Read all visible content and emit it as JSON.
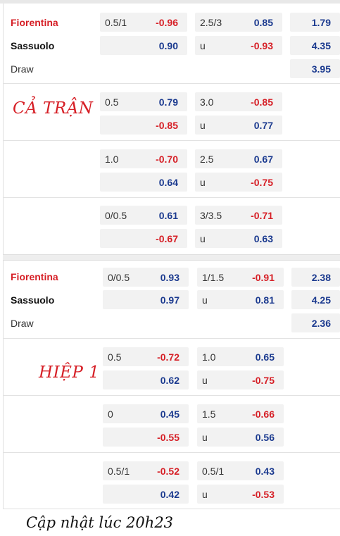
{
  "full_time": {
    "title": "CẢ TRẬN",
    "teams": {
      "home": "Fiorentina",
      "away": "Sassuolo",
      "draw": "Draw"
    },
    "main": {
      "ah_line": "0.5/1",
      "ah_home": "-0.96",
      "ah_away": "0.90",
      "ou_line": "2.5/3",
      "ou_over": "0.85",
      "ou_under_label": "u",
      "ou_under": "-0.93",
      "x12_home": "1.79",
      "x12_away": "4.35",
      "x12_draw": "3.95"
    },
    "alt": [
      {
        "ah_line": "0.5",
        "ah_home": "0.79",
        "ah_away": "-0.85",
        "ou_line": "3.0",
        "ou_over": "-0.85",
        "ou_under_label": "u",
        "ou_under": "0.77"
      },
      {
        "ah_line": "1.0",
        "ah_home": "-0.70",
        "ah_away": "0.64",
        "ou_line": "2.5",
        "ou_over": "0.67",
        "ou_under_label": "u",
        "ou_under": "-0.75"
      },
      {
        "ah_line": "0/0.5",
        "ah_home": "0.61",
        "ah_away": "-0.67",
        "ou_line": "3/3.5",
        "ou_over": "-0.71",
        "ou_under_label": "u",
        "ou_under": "0.63"
      }
    ]
  },
  "half_time": {
    "title": "HIỆP 1",
    "teams": {
      "home": "Fiorentina",
      "away": "Sassuolo",
      "draw": "Draw"
    },
    "main": {
      "ah_line": "0/0.5",
      "ah_home": "0.93",
      "ah_away": "0.97",
      "ou_line": "1/1.5",
      "ou_over": "-0.91",
      "ou_under_label": "u",
      "ou_under": "0.81",
      "x12_home": "2.38",
      "x12_away": "4.25",
      "x12_draw": "2.36"
    },
    "alt": [
      {
        "ah_line": "0.5",
        "ah_home": "-0.72",
        "ah_away": "0.62",
        "ou_line": "1.0",
        "ou_over": "0.65",
        "ou_under_label": "u",
        "ou_under": "-0.75"
      },
      {
        "ah_line": "0",
        "ah_home": "0.45",
        "ah_away": "-0.55",
        "ou_line": "1.5",
        "ou_over": "-0.66",
        "ou_under_label": "u",
        "ou_under": "0.56"
      },
      {
        "ah_line": "0.5/1",
        "ah_home": "-0.52",
        "ah_away": "0.42",
        "ou_line": "0.5/1",
        "ou_over": "0.43",
        "ou_under_label": "u",
        "ou_under": "-0.53"
      }
    ]
  },
  "footer": {
    "updated": "Cập nhật lúc 20h23"
  },
  "colors": {
    "positive": "#1b3a8f",
    "negative": "#d61f26",
    "cell_bg": "#f2f2f2"
  }
}
